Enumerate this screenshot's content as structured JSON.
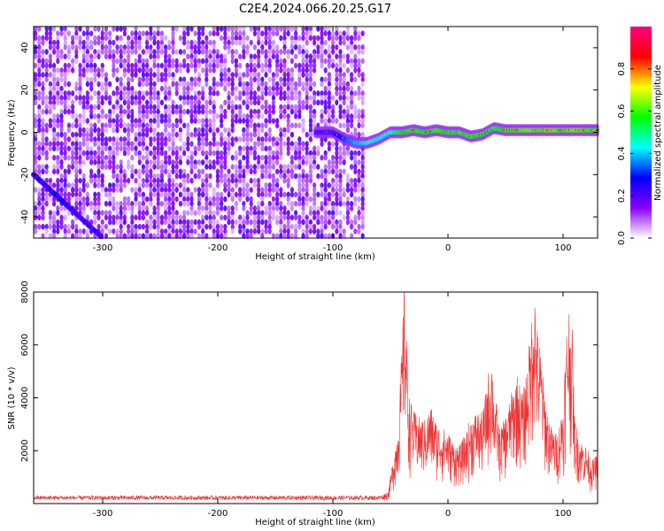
{
  "title": "C2E4.2024.066.20.25.G17",
  "chart_data": [
    {
      "type": "heatmap",
      "xlabel": "Height of straight line (km)",
      "ylabel": "Frequency (Hz)",
      "xlim": [
        -360,
        130
      ],
      "ylim": [
        -50,
        50
      ],
      "x_ticks": [
        -300,
        -200,
        -100,
        0,
        100
      ],
      "y_ticks": [
        -40,
        -20,
        0,
        20,
        40
      ],
      "colorbar": {
        "label": "Normalized spectral amplitude",
        "range": [
          0,
          1
        ],
        "ticks": [
          0.0,
          0.2,
          0.4,
          0.6,
          0.8
        ],
        "colormap": [
          "#ffffff",
          "#8a00ff",
          "#0000ff",
          "#00ffff",
          "#00ff00",
          "#ffff00",
          "#ff0000",
          "#ff0080"
        ]
      },
      "noise_region_x": [
        -360,
        -75
      ],
      "signal_trace": {
        "x": [
          -115,
          -100,
          -90,
          -80,
          -70,
          -60,
          -50,
          -40,
          -30,
          -20,
          -10,
          0,
          10,
          20,
          30,
          40,
          50,
          60,
          70,
          80,
          90,
          100,
          110,
          120,
          130
        ],
        "y": [
          0,
          0,
          -3,
          -5,
          -5,
          -3,
          0,
          0,
          1,
          0,
          1,
          0,
          0,
          -2,
          -1,
          2,
          1,
          1,
          1,
          1,
          1,
          1,
          1,
          1,
          1
        ],
        "amplitude": [
          0.3,
          0.3,
          0.45,
          0.55,
          0.6,
          0.6,
          0.65,
          0.8,
          0.85,
          0.8,
          0.85,
          0.8,
          0.75,
          0.85,
          0.8,
          0.75,
          0.85,
          0.85,
          0.9,
          0.85,
          0.9,
          0.85,
          0.9,
          0.85,
          0.85
        ]
      }
    },
    {
      "type": "line",
      "xlabel": "Height of straight line (km)",
      "ylabel": "SNR (10 * v/v)",
      "xlim": [
        -360,
        130
      ],
      "ylim": [
        0,
        8000
      ],
      "x_ticks": [
        -300,
        -200,
        -100,
        0,
        100
      ],
      "y_ticks": [
        2000,
        4000,
        6000,
        8000
      ],
      "color": "#ee3333",
      "envelope": {
        "x": [
          -360,
          -60,
          -52,
          -48,
          -44,
          -42,
          -40,
          -38,
          -36,
          -34,
          -30,
          -25,
          -20,
          -15,
          -10,
          -5,
          0,
          5,
          10,
          15,
          20,
          25,
          30,
          35,
          38,
          40,
          45,
          50,
          55,
          60,
          65,
          70,
          73,
          75,
          77,
          80,
          85,
          90,
          95,
          100,
          103,
          105,
          108,
          110,
          115,
          120,
          125,
          130
        ],
        "y": [
          300,
          300,
          400,
          1500,
          2500,
          3800,
          5500,
          7800,
          6000,
          3800,
          3200,
          3000,
          2900,
          3400,
          2800,
          2600,
          2500,
          2100,
          2000,
          2400,
          3000,
          3200,
          3100,
          4500,
          5200,
          4000,
          2600,
          3000,
          3800,
          4500,
          3800,
          5200,
          6800,
          7900,
          6200,
          5500,
          3500,
          2600,
          2400,
          3500,
          6000,
          7000,
          6000,
          3000,
          2200,
          2000,
          1500,
          1700
        ]
      }
    }
  ]
}
